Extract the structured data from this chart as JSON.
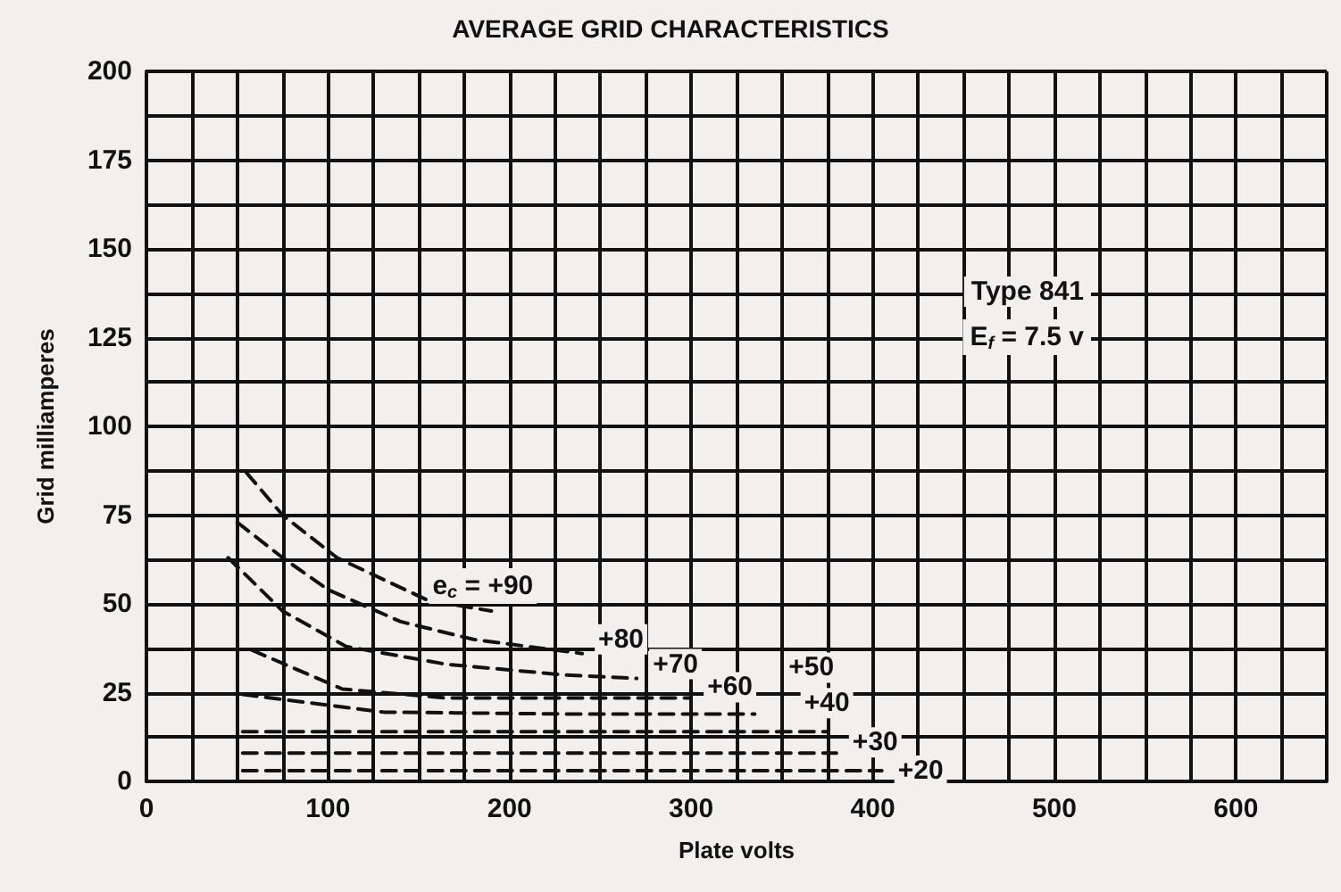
{
  "chart_data": {
    "type": "line",
    "title": "AVERAGE GRID CHARACTERISTICS",
    "xlabel": "Plate volts",
    "ylabel": "Grid milliamperes",
    "annotations": [
      "Type 841",
      "E$_{f}$ = 7.5 v"
    ],
    "xlim": [
      0,
      650
    ],
    "ylim": [
      0,
      200
    ],
    "xticks": [
      0,
      {
        "value": 25,
        "label": null
      },
      {
        "value": 50,
        "label": null
      },
      {
        "value": 75,
        "label": null
      },
      100,
      {
        "value": 125,
        "label": null
      },
      {
        "value": 150,
        "label": null
      },
      {
        "value": 175,
        "label": null
      },
      200,
      {
        "value": 225,
        "label": null
      },
      {
        "value": 250,
        "label": null
      },
      {
        "value": 275,
        "label": null
      },
      300,
      {
        "value": 325,
        "label": null
      },
      {
        "value": 350,
        "label": null
      },
      {
        "value": 375,
        "label": null
      },
      400,
      {
        "value": 425,
        "label": null
      },
      {
        "value": 450,
        "label": null
      },
      {
        "value": 475,
        "label": null
      },
      500,
      {
        "value": 525,
        "label": null
      },
      {
        "value": 550,
        "label": null
      },
      {
        "value": 575,
        "label": null
      },
      600,
      {
        "value": 625,
        "label": null
      },
      {
        "value": 650,
        "label": null
      }
    ],
    "yticks": [
      0,
      {
        "value": 12.5,
        "label": null
      },
      25,
      {
        "value": 37.5,
        "label": null
      },
      50,
      {
        "value": 62.5,
        "label": null
      },
      75,
      {
        "value": 87.5,
        "label": null
      },
      100,
      {
        "value": 112.5,
        "label": null
      },
      125,
      {
        "value": 137.5,
        "label": null
      },
      150,
      {
        "value": 162.5,
        "label": null
      },
      175,
      {
        "value": 187.5,
        "label": null
      },
      200
    ],
    "grid": true,
    "legend": false,
    "marker": "none",
    "line_style": "dashed",
    "series": [
      {
        "name": "e$_{c}$ = +90",
        "color": "#111111",
        "x": [
          55,
          75,
          105,
          155,
          190
        ],
        "values": [
          87,
          75,
          63,
          51,
          48
        ]
      },
      {
        "name": "+80",
        "color": "#111111",
        "x": [
          50,
          75,
          100,
          140,
          180,
          240
        ],
        "values": [
          73,
          63,
          54,
          45,
          40,
          36
        ]
      },
      {
        "name": "+70",
        "color": "#111111",
        "x": [
          45,
          75,
          110,
          165,
          230,
          270
        ],
        "values": [
          63,
          48,
          38,
          33,
          30,
          29
        ]
      },
      {
        "name": "+60",
        "color": "#111111",
        "x": [
          58,
          108,
          165,
          230,
          300
        ],
        "values": [
          37,
          26,
          23.5,
          23.5,
          23.5
        ]
      },
      {
        "name": "+50",
        "color": "#111111",
        "x": [
          53,
          131,
          230,
          335
        ],
        "values": [
          24.5,
          19.5,
          19,
          19
        ]
      },
      {
        "name": "+40",
        "color": "#111111",
        "x": [
          53,
          150,
          250,
          375
        ],
        "values": [
          14,
          14,
          14,
          14
        ]
      },
      {
        "name": "+30",
        "color": "#111111",
        "x": [
          53,
          150,
          250,
          380
        ],
        "values": [
          8,
          8,
          8,
          8
        ]
      },
      {
        "name": "+20",
        "color": "#111111",
        "x": [
          53,
          150,
          250,
          405
        ],
        "values": [
          3,
          3,
          3,
          3
        ]
      }
    ]
  }
}
